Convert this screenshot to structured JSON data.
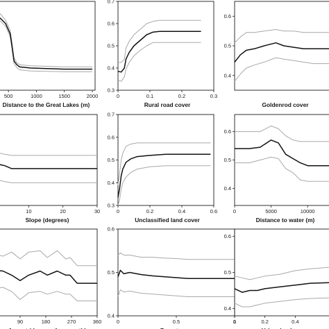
{
  "chart_data": [
    {
      "type": "line",
      "xlabel": "Distance to the Great Lakes (m)",
      "xticks": [
        500,
        1000,
        1500,
        2000
      ],
      "yticks": [],
      "xlim": [
        250,
        2050
      ],
      "ylim": [
        0.3,
        0.7
      ],
      "series": [
        {
          "role": "upper",
          "x": [
            250,
            350,
            450,
            530,
            560,
            600,
            650,
            700,
            900,
            1500,
            2000
          ],
          "y": [
            0.653,
            0.645,
            0.615,
            0.57,
            0.52,
            0.445,
            0.425,
            0.415,
            0.41,
            0.405,
            0.405
          ]
        },
        {
          "role": "mean",
          "x": [
            250,
            350,
            450,
            530,
            560,
            600,
            650,
            700,
            900,
            1500,
            2000
          ],
          "y": [
            0.635,
            0.625,
            0.6,
            0.555,
            0.505,
            0.432,
            0.415,
            0.405,
            0.4,
            0.395,
            0.395
          ]
        },
        {
          "role": "lower",
          "x": [
            250,
            350,
            450,
            530,
            560,
            600,
            650,
            700,
            900,
            1500,
            2000
          ],
          "y": [
            0.62,
            0.612,
            0.588,
            0.542,
            0.493,
            0.42,
            0.402,
            0.392,
            0.387,
            0.383,
            0.383
          ]
        }
      ]
    },
    {
      "type": "line",
      "xlabel": "Rural road cover",
      "xticks": [
        "0",
        "0.1",
        "0.2",
        "0.3"
      ],
      "yticks": [
        "0.3",
        "0.4",
        "0.5",
        "0.6",
        "0.7"
      ],
      "xlim": [
        0,
        0.3
      ],
      "ylim": [
        0.3,
        0.7
      ],
      "series": [
        {
          "role": "upper",
          "x": [
            0,
            0.01,
            0.02,
            0.025,
            0.035,
            0.05,
            0.07,
            0.09,
            0.11,
            0.13,
            0.26
          ],
          "y": [
            0.425,
            0.425,
            0.44,
            0.49,
            0.52,
            0.55,
            0.575,
            0.6,
            0.61,
            0.615,
            0.615
          ]
        },
        {
          "role": "mean",
          "x": [
            0,
            0.01,
            0.02,
            0.025,
            0.035,
            0.05,
            0.07,
            0.09,
            0.11,
            0.13,
            0.26
          ],
          "y": [
            0.385,
            0.382,
            0.4,
            0.44,
            0.47,
            0.5,
            0.525,
            0.55,
            0.562,
            0.565,
            0.565
          ]
        },
        {
          "role": "lower",
          "x": [
            0,
            0.01,
            0.02,
            0.025,
            0.035,
            0.05,
            0.07,
            0.09,
            0.11,
            0.13,
            0.26
          ],
          "y": [
            0.345,
            0.34,
            0.36,
            0.395,
            0.425,
            0.455,
            0.48,
            0.5,
            0.515,
            0.515,
            0.515
          ]
        }
      ]
    },
    {
      "type": "line",
      "xlabel": "Goldenrod cover",
      "xticks": [],
      "yticks": [
        "0.4",
        "0.5",
        "0.6"
      ],
      "xlim": [
        0,
        1
      ],
      "ylim": [
        0.35,
        0.65
      ],
      "series": [
        {
          "role": "upper",
          "x": [
            0,
            0.06,
            0.12,
            0.2,
            0.3,
            0.42,
            0.5,
            0.6,
            0.7,
            0.8,
            1.0
          ],
          "y": [
            0.51,
            0.53,
            0.545,
            0.545,
            0.55,
            0.555,
            0.55,
            0.55,
            0.545,
            0.545,
            0.545
          ]
        },
        {
          "role": "mean",
          "x": [
            0,
            0.06,
            0.12,
            0.2,
            0.3,
            0.42,
            0.5,
            0.6,
            0.7,
            0.8,
            1.0
          ],
          "y": [
            0.445,
            0.47,
            0.485,
            0.49,
            0.5,
            0.51,
            0.5,
            0.495,
            0.49,
            0.49,
            0.49
          ]
        },
        {
          "role": "lower",
          "x": [
            0,
            0.06,
            0.12,
            0.2,
            0.3,
            0.42,
            0.5,
            0.6,
            0.7,
            0.8,
            1.0
          ],
          "y": [
            0.38,
            0.405,
            0.425,
            0.435,
            0.445,
            0.46,
            0.455,
            0.45,
            0.445,
            0.44,
            0.44
          ]
        }
      ]
    },
    {
      "type": "line",
      "xlabel": "Slope (degrees)",
      "xticks": [
        "10",
        "20",
        "30"
      ],
      "yticks": [],
      "xlim": [
        0,
        30
      ],
      "ylim": [
        0.3,
        0.7
      ],
      "series": [
        {
          "role": "upper",
          "x": [
            0,
            3,
            5,
            7,
            30
          ],
          "y": [
            0.535,
            0.525,
            0.52,
            0.52,
            0.52
          ]
        },
        {
          "role": "mean",
          "x": [
            0,
            3,
            5,
            7,
            30
          ],
          "y": [
            0.485,
            0.475,
            0.462,
            0.462,
            0.462
          ]
        },
        {
          "role": "lower",
          "x": [
            0,
            3,
            5,
            7,
            30
          ],
          "y": [
            0.415,
            0.405,
            0.4,
            0.4,
            0.4
          ]
        }
      ]
    },
    {
      "type": "line",
      "xlabel": "Unclassified land cover",
      "xticks": [
        "0",
        "0.2",
        "0.4",
        "0.6"
      ],
      "yticks": [
        "0.3",
        "0.4",
        "0.5",
        "0.6",
        "0.7"
      ],
      "xlim": [
        0,
        0.6
      ],
      "ylim": [
        0.3,
        0.7
      ],
      "series": [
        {
          "role": "upper",
          "x": [
            0,
            0.01,
            0.02,
            0.03,
            0.05,
            0.08,
            0.12,
            0.2,
            0.3,
            0.58
          ],
          "y": [
            0.39,
            0.44,
            0.5,
            0.53,
            0.56,
            0.57,
            0.575,
            0.575,
            0.575,
            0.575
          ]
        },
        {
          "role": "mean",
          "x": [
            0,
            0.01,
            0.02,
            0.03,
            0.05,
            0.08,
            0.12,
            0.2,
            0.3,
            0.58
          ],
          "y": [
            0.335,
            0.375,
            0.43,
            0.46,
            0.49,
            0.505,
            0.515,
            0.52,
            0.525,
            0.525
          ]
        },
        {
          "role": "lower",
          "x": [
            0,
            0.01,
            0.02,
            0.03,
            0.05,
            0.08,
            0.12,
            0.2,
            0.3,
            0.58
          ],
          "y": [
            0.3,
            0.325,
            0.37,
            0.4,
            0.425,
            0.445,
            0.46,
            0.47,
            0.475,
            0.475
          ]
        }
      ]
    },
    {
      "type": "line",
      "xlabel": "Distance to water (m)",
      "xticks": [
        "0",
        "5000",
        "10000"
      ],
      "yticks": [
        "0.4",
        "0.5",
        "0.6"
      ],
      "xlim": [
        0,
        13500
      ],
      "ylim": [
        0.34,
        0.66
      ],
      "series": [
        {
          "role": "upper",
          "x": [
            0,
            2000,
            3500,
            5000,
            6000,
            7000,
            8000,
            9000,
            10000,
            13500
          ],
          "y": [
            0.6,
            0.6,
            0.6,
            0.62,
            0.61,
            0.585,
            0.57,
            0.565,
            0.565,
            0.565
          ]
        },
        {
          "role": "mean",
          "x": [
            0,
            2000,
            3500,
            5000,
            6000,
            7000,
            8000,
            9000,
            10000,
            13500
          ],
          "y": [
            0.54,
            0.54,
            0.545,
            0.57,
            0.56,
            0.52,
            0.505,
            0.49,
            0.48,
            0.48
          ]
        },
        {
          "role": "lower",
          "x": [
            0,
            2000,
            3500,
            5000,
            6000,
            7000,
            8000,
            9000,
            10000,
            13500
          ],
          "y": [
            0.49,
            0.49,
            0.5,
            0.51,
            0.505,
            0.47,
            0.455,
            0.43,
            0.425,
            0.425
          ]
        }
      ]
    },
    {
      "type": "line",
      "xlabel": "Aspect (degrees from north)",
      "xticks": [
        "90",
        "180",
        "270",
        "360"
      ],
      "yticks": [],
      "xlim": [
        0,
        360
      ],
      "ylim": [
        0.34,
        0.66
      ],
      "series": [
        {
          "role": "upper",
          "x": [
            0,
            30,
            60,
            90,
            120,
            160,
            185,
            220,
            250,
            265,
            290,
            330,
            360
          ],
          "y": [
            0.568,
            0.56,
            0.575,
            0.55,
            0.575,
            0.58,
            0.555,
            0.58,
            0.55,
            0.555,
            0.525,
            0.525,
            0.525
          ]
        },
        {
          "role": "mean",
          "x": [
            0,
            30,
            60,
            90,
            120,
            160,
            185,
            220,
            250,
            265,
            290,
            330,
            360
          ],
          "y": [
            0.508,
            0.505,
            0.49,
            0.47,
            0.49,
            0.505,
            0.49,
            0.505,
            0.49,
            0.49,
            0.46,
            0.46,
            0.46
          ]
        },
        {
          "role": "lower",
          "x": [
            0,
            30,
            60,
            90,
            120,
            160,
            185,
            220,
            250,
            265,
            290,
            330,
            360
          ],
          "y": [
            0.44,
            0.445,
            0.43,
            0.4,
            0.425,
            0.43,
            0.42,
            0.43,
            0.42,
            0.42,
            0.395,
            0.395,
            0.395
          ]
        }
      ]
    },
    {
      "type": "line",
      "xlabel": "Forest cover",
      "xticks": [
        "0",
        "0.5",
        "1"
      ],
      "yticks": [
        "0.4",
        "0.5",
        "0.6"
      ],
      "xlim": [
        0,
        1
      ],
      "ylim": [
        0.4,
        0.6
      ],
      "series": [
        {
          "role": "upper",
          "x": [
            0,
            0.02,
            0.05,
            0.1,
            0.2,
            0.3,
            0.4,
            0.5,
            0.6,
            1.0
          ],
          "y": [
            0.54,
            0.545,
            0.54,
            0.54,
            0.535,
            0.535,
            0.533,
            0.532,
            0.53,
            0.53
          ]
        },
        {
          "role": "mean",
          "x": [
            0,
            0.02,
            0.05,
            0.1,
            0.2,
            0.3,
            0.4,
            0.5,
            0.6,
            1.0
          ],
          "y": [
            0.49,
            0.505,
            0.497,
            0.5,
            0.495,
            0.492,
            0.49,
            0.488,
            0.486,
            0.486
          ]
        },
        {
          "role": "lower",
          "x": [
            0,
            0.02,
            0.05,
            0.1,
            0.2,
            0.3,
            0.4,
            0.5,
            0.6,
            1.0
          ],
          "y": [
            0.445,
            0.46,
            0.455,
            0.457,
            0.452,
            0.45,
            0.448,
            0.446,
            0.444,
            0.444
          ]
        }
      ]
    },
    {
      "type": "line",
      "xlabel": "Urban land cover",
      "xticks": [
        "0",
        "0.2",
        "0.4"
      ],
      "yticks": [
        "0.4",
        "0.5",
        "0.6"
      ],
      "xlim": [
        0,
        0.65
      ],
      "ylim": [
        0.38,
        0.62
      ],
      "series": [
        {
          "role": "upper",
          "x": [
            0,
            0.05,
            0.1,
            0.15,
            0.2,
            0.3,
            0.4,
            0.5,
            0.65
          ],
          "y": [
            0.49,
            0.485,
            0.48,
            0.485,
            0.49,
            0.495,
            0.505,
            0.51,
            0.515
          ]
        },
        {
          "role": "mean",
          "x": [
            0,
            0.05,
            0.1,
            0.15,
            0.2,
            0.3,
            0.4,
            0.5,
            0.65
          ],
          "y": [
            0.455,
            0.445,
            0.45,
            0.45,
            0.455,
            0.46,
            0.465,
            0.47,
            0.472
          ]
        },
        {
          "role": "lower",
          "x": [
            0,
            0.05,
            0.1,
            0.15,
            0.2,
            0.3,
            0.4,
            0.5,
            0.65
          ],
          "y": [
            0.415,
            0.405,
            0.405,
            0.41,
            0.415,
            0.42,
            0.425,
            0.428,
            0.43
          ]
        }
      ]
    }
  ]
}
